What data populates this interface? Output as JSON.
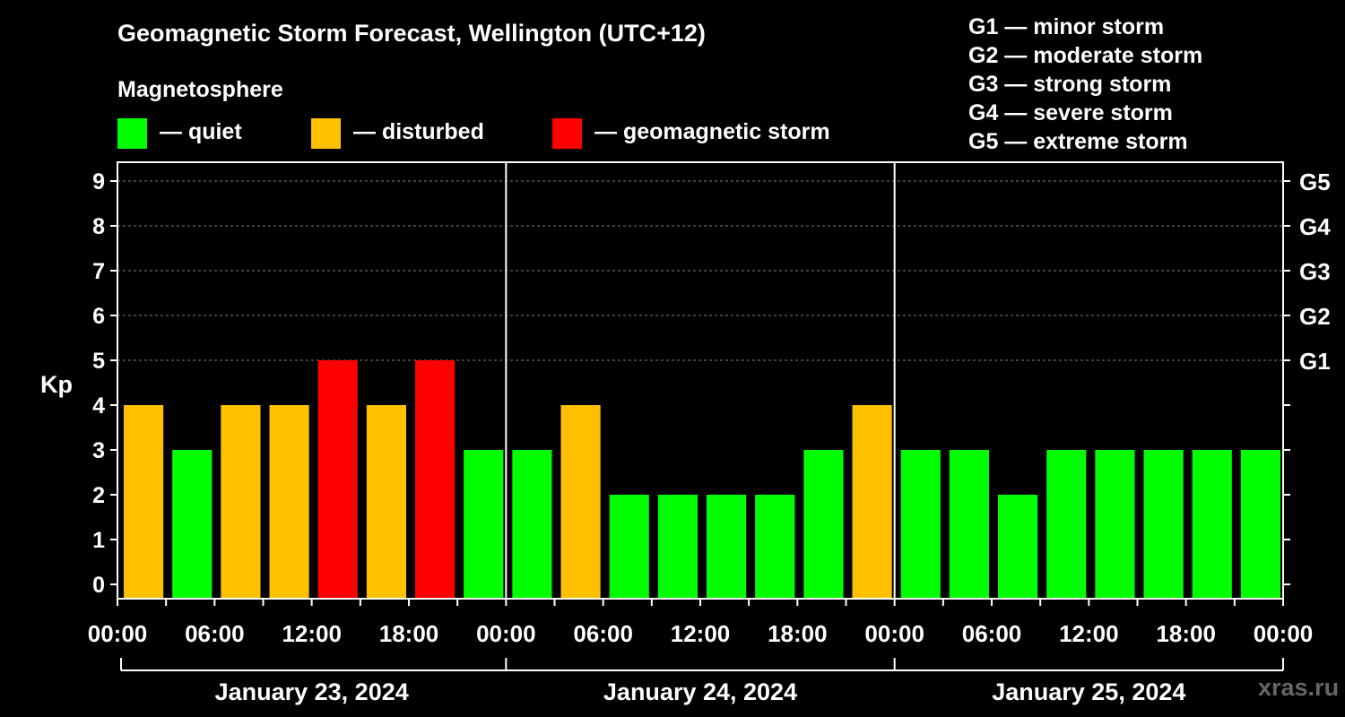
{
  "colors": {
    "quiet": "#00ff00",
    "disturbed": "#ffc000",
    "storm": "#ff0000",
    "background": "#000000",
    "axis": "#ffffff",
    "grid": "#808080"
  },
  "chart_data": {
    "type": "bar",
    "title": "Geomagnetic Storm Forecast, Wellington (UTC+12)",
    "subtitle": "Magnetosphere",
    "ylabel": "Kp",
    "ylim": [
      0,
      9
    ],
    "y_ticks": [
      "0",
      "1",
      "2",
      "3",
      "4",
      "5",
      "6",
      "7",
      "8",
      "9"
    ],
    "right_ticks": [
      {
        "kp": 5,
        "label": "G1"
      },
      {
        "kp": 6,
        "label": "G2"
      },
      {
        "kp": 7,
        "label": "G3"
      },
      {
        "kp": 8,
        "label": "G4"
      },
      {
        "kp": 9,
        "label": "G5"
      }
    ],
    "gridlines": [
      5,
      6,
      7,
      8,
      9
    ],
    "x_ticks": [
      "00:00",
      "06:00",
      "12:00",
      "18:00",
      "00:00",
      "06:00",
      "12:00",
      "18:00",
      "00:00",
      "06:00",
      "12:00",
      "18:00",
      "00:00"
    ],
    "days": [
      "January 23, 2024",
      "January 24, 2024",
      "January 25, 2024"
    ],
    "interval_hours": 3,
    "values": [
      4,
      3,
      4,
      4,
      5,
      4,
      5,
      3,
      3,
      4,
      2,
      2,
      2,
      2,
      3,
      4,
      3,
      3,
      2,
      3,
      3,
      3,
      3,
      3
    ],
    "legend": [
      {
        "label": "— quiet",
        "color_key": "quiet"
      },
      {
        "label": "— disturbed",
        "color_key": "disturbed"
      },
      {
        "label": "— geomagnetic storm",
        "color_key": "storm"
      }
    ],
    "storm_scale": [
      "G1 — minor storm",
      "G2 — moderate storm",
      "G3 — strong storm",
      "G4 — severe storm",
      "G5 — extreme storm"
    ]
  },
  "watermark": "xras.ru"
}
